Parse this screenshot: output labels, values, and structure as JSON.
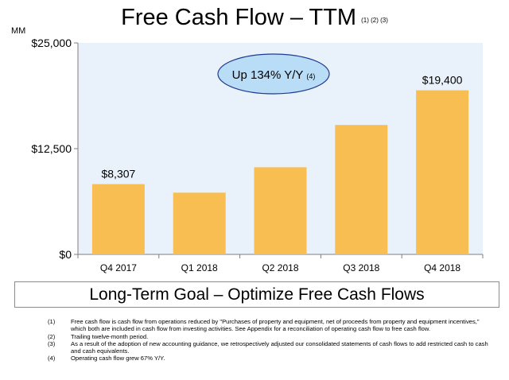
{
  "header": {
    "title": "Free Cash Flow – TTM",
    "title_notes": "(1) (2) (3)"
  },
  "unit_label": "MM",
  "chart_data": {
    "type": "bar",
    "categories": [
      "Q4 2017",
      "Q1 2018",
      "Q2 2018",
      "Q3 2018",
      "Q4 2018"
    ],
    "values": [
      8307,
      7300,
      10300,
      15300,
      19400
    ],
    "data_labels": [
      "$8,307",
      "",
      "",
      "",
      "$19,400"
    ],
    "ylim": [
      0,
      25000
    ],
    "y_ticks": [
      0,
      12500,
      25000
    ],
    "y_tick_labels": [
      "$0",
      "$12,500",
      "$25,000"
    ],
    "annotation": {
      "text": "Up 134% Y/Y",
      "note": "(4)"
    },
    "grid": false,
    "bar_color": "#f9be52",
    "plot_background": "#e9f1fb",
    "annotation_fill": "#b9ddf6",
    "annotation_stroke": "#1f3a93"
  },
  "goal": "Long-Term Goal – Optimize Free Cash Flows",
  "footnotes": [
    {
      "num": "(1)",
      "text": "Free cash flow is cash flow from operations reduced by \"Purchases of property and equipment, net of proceeds from property and equipment incentives,\" which both are included in cash flow from investing activities. See Appendix for a reconciliation of operating cash flow to free cash flow."
    },
    {
      "num": "(2)",
      "text": "Trailing twelve-month period."
    },
    {
      "num": "(3)",
      "text": "As a result of the adoption of new accounting guidance, we retrospectively adjusted our consolidated statements of cash flows to add restricted cash to cash and cash equivalents."
    },
    {
      "num": "(4)",
      "text": "Operating cash flow grew 67% Y/Y."
    }
  ]
}
